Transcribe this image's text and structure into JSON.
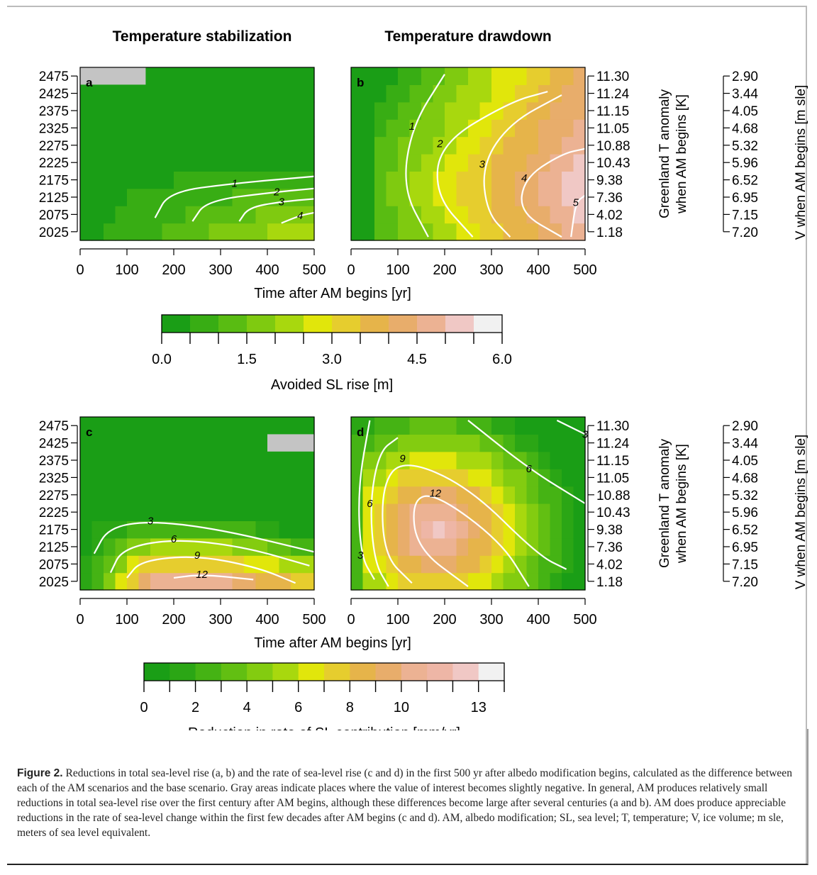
{
  "figure": {
    "heading_left": "Temperature stabilization",
    "heading_right": "Temperature drawdown",
    "caption_label": "Figure 2.",
    "caption_text": "Reductions in total sea-level rise (a, b) and the rate of sea-level rise (c and d) in the first 500 yr after albedo modification begins, calculated as the difference between each of the AM scenarios and the base scenario. Gray areas indicate places where the value of interest becomes slightly negative. In general, AM produces relatively small reductions in total sea-level rise over the first century after AM begins, although these differences become large after several centuries (a and b). AM does produce appreciable reductions in the rate of sea-level change within the first few decades after AM begins (c and d). AM, albedo modification; SL, sea level; T, temperature; V, ice volume; m sle, meters of sea level equivalent."
  },
  "chart_data": [
    {
      "type": "heatmap",
      "panel": "a",
      "xlabel": "Time after AM begins [yr]",
      "x_ticks": [
        0,
        100,
        200,
        300,
        400,
        500
      ],
      "xlim": [
        0,
        500
      ],
      "y_ticks": [
        2475,
        2425,
        2375,
        2325,
        2275,
        2225,
        2175,
        2125,
        2075,
        2025
      ],
      "ylim": [
        2000,
        2500
      ],
      "contours": [
        {
          "label": "1",
          "points": [
            [
              160,
              2065
            ],
            [
              190,
              2140
            ],
            [
              330,
              2165
            ],
            [
              500,
              2185
            ]
          ]
        },
        {
          "label": "2",
          "points": [
            [
              240,
              2055
            ],
            [
              270,
              2115
            ],
            [
              420,
              2140
            ],
            [
              500,
              2150
            ]
          ]
        },
        {
          "label": "3",
          "points": [
            [
              340,
              2055
            ],
            [
              360,
              2095
            ],
            [
              430,
              2112
            ],
            [
              500,
              2120
            ]
          ]
        },
        {
          "label": "4",
          "points": [
            [
              430,
              2050
            ],
            [
              470,
              2072
            ],
            [
              500,
              2080
            ]
          ]
        }
      ],
      "gray_region": {
        "x": [
          0,
          140
        ],
        "y": [
          2450,
          2500
        ]
      }
    },
    {
      "type": "heatmap",
      "panel": "b",
      "xlabel": "Time after AM begins [yr]",
      "x_ticks": [
        0,
        100,
        200,
        300,
        400,
        500
      ],
      "xlim": [
        0,
        500
      ],
      "right_axis_1": {
        "label": "Greenland T anomaly when AM begins [K]",
        "ticks": [
          "11.30",
          "11.24",
          "11.15",
          "11.05",
          "10.88",
          "10.43",
          "9.38",
          "7.36",
          "4.02",
          "1.18"
        ]
      },
      "right_axis_2": {
        "label": "V when AM begins [m sle]",
        "ticks": [
          "2.90",
          "3.44",
          "4.05",
          "4.68",
          "5.32",
          "5.96",
          "6.52",
          "6.95",
          "7.15",
          "7.20"
        ]
      },
      "contours": [
        {
          "label": "1",
          "points": [
            [
              165,
              2010
            ],
            [
              110,
              2150
            ],
            [
              130,
              2330
            ],
            [
              200,
              2480
            ]
          ]
        },
        {
          "label": "2",
          "points": [
            [
              260,
              2010
            ],
            [
              180,
              2130
            ],
            [
              190,
              2280
            ],
            [
              340,
              2400
            ],
            [
              420,
              2430
            ]
          ]
        },
        {
          "label": "3",
          "points": [
            [
              450,
              2420
            ],
            [
              340,
              2340
            ],
            [
              280,
              2220
            ],
            [
              290,
              2080
            ],
            [
              340,
              2010
            ]
          ]
        },
        {
          "label": "4",
          "points": [
            [
              450,
              2010
            ],
            [
              360,
              2080
            ],
            [
              370,
              2180
            ],
            [
              450,
              2250
            ],
            [
              500,
              2265
            ]
          ]
        },
        {
          "label": "5",
          "points": [
            [
              470,
              2010
            ],
            [
              480,
              2110
            ],
            [
              500,
              2130
            ]
          ]
        }
      ]
    },
    {
      "type": "heatmap",
      "panel": "c",
      "xlabel": "Time after AM begins [yr]",
      "x_ticks": [
        0,
        100,
        200,
        300,
        400,
        500
      ],
      "xlim": [
        0,
        500
      ],
      "y_ticks": [
        2475,
        2425,
        2375,
        2325,
        2275,
        2225,
        2175,
        2125,
        2075,
        2025
      ],
      "ylim": [
        2000,
        2500
      ],
      "contours": [
        {
          "label": "3",
          "points": [
            [
              30,
              2105
            ],
            [
              60,
              2180
            ],
            [
              150,
              2200
            ],
            [
              300,
              2175
            ],
            [
              500,
              2110
            ]
          ]
        },
        {
          "label": "6",
          "points": [
            [
              65,
              2050
            ],
            [
              90,
              2120
            ],
            [
              200,
              2148
            ],
            [
              350,
              2125
            ],
            [
              490,
              2070
            ]
          ]
        },
        {
          "label": "9",
          "points": [
            [
              100,
              2035
            ],
            [
              130,
              2085
            ],
            [
              250,
              2100
            ],
            [
              380,
              2065
            ],
            [
              460,
              2020
            ]
          ]
        },
        {
          "label": "12",
          "points": [
            [
              200,
              2035
            ],
            [
              260,
              2045
            ],
            [
              370,
              2030
            ]
          ]
        }
      ],
      "gray_region": {
        "x": [
          400,
          500
        ],
        "y": [
          2400,
          2450
        ]
      }
    },
    {
      "type": "heatmap",
      "panel": "d",
      "xlabel": "Time after AM begins [yr]",
      "x_ticks": [
        0,
        100,
        200,
        300,
        400,
        500
      ],
      "xlim": [
        0,
        500
      ],
      "right_axis_1": {
        "label": "Greenland T anomaly when AM begins [K]",
        "ticks": [
          "11.30",
          "11.24",
          "11.15",
          "11.05",
          "10.88",
          "10.43",
          "9.38",
          "7.36",
          "4.02",
          "1.18"
        ]
      },
      "right_axis_2": {
        "label": "V when AM begins [m sle]",
        "ticks": [
          "2.90",
          "3.44",
          "4.05",
          "4.68",
          "5.32",
          "5.96",
          "6.52",
          "6.95",
          "7.15",
          "7.20"
        ]
      },
      "contours": [
        {
          "label": "3",
          "points": [
            [
              40,
              2490
            ],
            [
              15,
              2300
            ],
            [
              20,
              2100
            ],
            [
              50,
              2030
            ]
          ]
        },
        {
          "label": "6",
          "points": [
            [
              80,
              2010
            ],
            [
              50,
              2080
            ],
            [
              40,
              2250
            ],
            [
              60,
              2400
            ],
            [
              100,
              2440
            ]
          ]
        },
        {
          "label": "6",
          "points": [
            [
              250,
              2490
            ],
            [
              380,
              2350
            ],
            [
              500,
              2250
            ]
          ]
        },
        {
          "label": "9",
          "points": [
            [
              130,
              2020
            ],
            [
              70,
              2100
            ],
            [
              65,
              2300
            ],
            [
              110,
              2380
            ],
            [
              250,
              2300
            ],
            [
              400,
              2100
            ],
            [
              460,
              2060
            ]
          ]
        },
        {
          "label": "12",
          "points": [
            [
              250,
              2010
            ],
            [
              140,
              2120
            ],
            [
              130,
              2260
            ],
            [
              180,
              2280
            ],
            [
              320,
              2140
            ],
            [
              380,
              2010
            ]
          ]
        },
        {
          "label": "3",
          "points": [
            [
              440,
              2490
            ],
            [
              500,
              2450
            ]
          ]
        }
      ]
    }
  ],
  "colorbar_top": {
    "label": "Avoided SL rise [m]",
    "tick_labels": [
      "0.0",
      "1.5",
      "3.0",
      "4.5",
      "6.0"
    ],
    "range": [
      0,
      6
    ],
    "colors": [
      "#1a9e16",
      "#38ad14",
      "#59bc12",
      "#7fca10",
      "#a8d80e",
      "#e1e60b",
      "#e6cd2e",
      "#e6b44a",
      "#e8ad6b",
      "#ecb293",
      "#f0c8c5",
      "#f1f1f1"
    ]
  },
  "colorbar_bottom": {
    "label": "Reduction in rate of SL contribution [mm/yr]",
    "tick_labels": [
      "0",
      "2",
      "4",
      "6",
      "8",
      "10",
      "13"
    ],
    "range": [
      0,
      14
    ],
    "colors": [
      "#1a9e16",
      "#2ba615",
      "#45b314",
      "#62bf12",
      "#83cc10",
      "#a8d80e",
      "#e1e60b",
      "#e6cd2e",
      "#e6b44a",
      "#e8ad6b",
      "#ecb293",
      "#eeb6a6",
      "#f0c8c5",
      "#f1f1f1"
    ]
  }
}
